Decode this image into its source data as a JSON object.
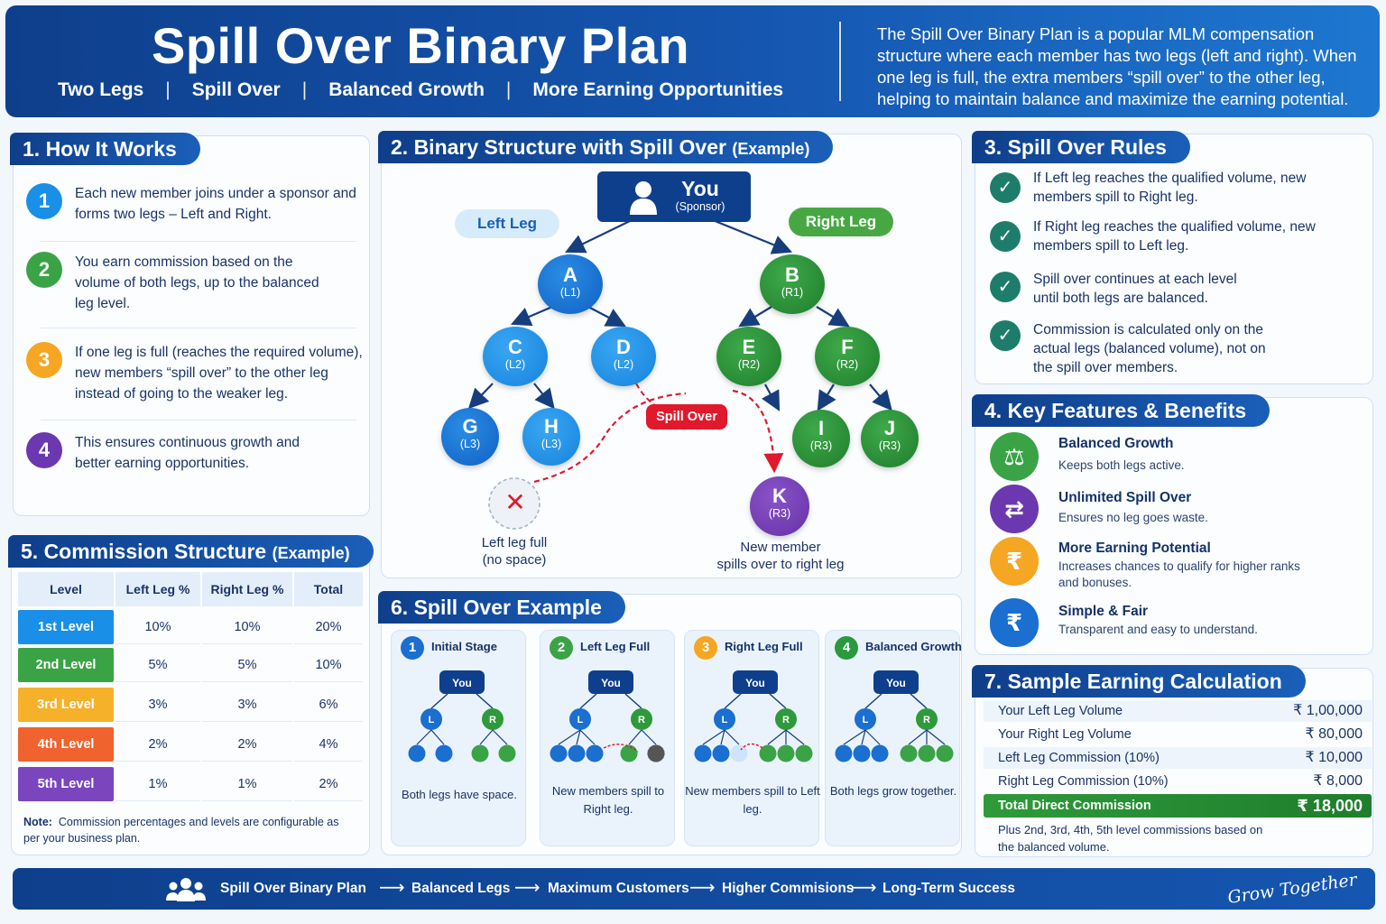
{
  "header": {
    "title": "Spill Over Binary Plan",
    "tags": [
      "Two Legs",
      "Spill Over",
      "Balanced Growth",
      "More Earning Opportunities"
    ],
    "separator": "|",
    "description": "The Spill Over Binary Plan is a popular MLM compensation structure where each member has two legs (left and right). When one leg is full, the extra members “spill over” to the other leg, helping to maintain balance and maximize the earning potential."
  },
  "how_it_works": {
    "title": "1.  How It Works",
    "steps": [
      {
        "num": "1",
        "text": "Each new member joins under a sponsor and forms two legs – Left and Right.",
        "color": "#1a8fe8"
      },
      {
        "num": "2",
        "text": "You earn commission based on the volume of both legs, up to the balanced leg level.",
        "color": "#3aa346"
      },
      {
        "num": "3",
        "text": "If one leg is full (reaches the required volume), new members “spill over” to the other leg instead of going to the weaker leg.",
        "color": "#f5a623"
      },
      {
        "num": "4",
        "text": "This ensures continuous growth and better earning opportunities.",
        "color": "#6b38b0"
      }
    ]
  },
  "binary_structure": {
    "title": "2.  Binary Structure with Spill Over",
    "title_suffix": "(Example)",
    "sponsor": {
      "label": "You",
      "sub": "(Sponsor)"
    },
    "left_leg_label": "Left Leg",
    "right_leg_label": "Right Leg",
    "nodes": {
      "A": {
        "label": "A",
        "sub": "(L1)"
      },
      "B": {
        "label": "B",
        "sub": "(R1)"
      },
      "C": {
        "label": "C",
        "sub": "(L2)"
      },
      "D": {
        "label": "D",
        "sub": "(L2)"
      },
      "E": {
        "label": "E",
        "sub": "(R2)"
      },
      "F": {
        "label": "F",
        "sub": "(R2)"
      },
      "G": {
        "label": "G",
        "sub": "(L3)"
      },
      "H": {
        "label": "H",
        "sub": "(L3)"
      },
      "I": {
        "label": "I",
        "sub": "(R3)"
      },
      "J": {
        "label": "J",
        "sub": "(R3)"
      },
      "K": {
        "label": "K",
        "sub": "(R3)"
      }
    },
    "spill_label": "Spill Over",
    "full_caption_1": "Left leg full",
    "full_caption_2": "(no space)",
    "new_member_caption_1": "New member",
    "new_member_caption_2": "spills over to right leg"
  },
  "rules": {
    "title": "3.  Spill Over Rules",
    "items": [
      "If Left leg reaches the qualified volume, new members spill to Right leg.",
      "If Right leg reaches the qualified volume, new members spill to Left leg.",
      "Spill over continues at each level until both legs are balanced.",
      "Commission is calculated only on the actual legs (balanced volume), not on the spill over members."
    ]
  },
  "features": {
    "title": "4.  Key Features & Benefits",
    "items": [
      {
        "title": "Balanced Growth",
        "desc": "Keeps both legs active.",
        "icon": "scale-icon",
        "glyph": "⚖",
        "color": "#3aa346"
      },
      {
        "title": "Unlimited Spill Over",
        "desc": "Ensures no leg goes waste.",
        "icon": "swap-arrows-icon",
        "glyph": "⇄",
        "color": "#6b38b0"
      },
      {
        "title": "More Earning Potential",
        "desc": "Increases chances to qualify for higher ranks and bonuses.",
        "icon": "money-bag-icon",
        "glyph": "₹",
        "color": "#f5a623"
      },
      {
        "title": "Simple & Fair",
        "desc": "Transparent and easy to understand.",
        "icon": "shield-rupee-icon",
        "glyph": "₹",
        "color": "#1a6fd0"
      }
    ]
  },
  "commission": {
    "title": "5.  Commission Structure",
    "title_suffix": "(Example)",
    "headers": [
      "Level",
      "Left Leg %",
      "Right Leg %",
      "Total"
    ],
    "rows": [
      {
        "level": "1st Level",
        "left": "10%",
        "right": "10%",
        "total": "20%",
        "color": "#1a8fe8"
      },
      {
        "level": "2nd Level",
        "left": "5%",
        "right": "5%",
        "total": "10%",
        "color": "#3aa346"
      },
      {
        "level": "3rd Level",
        "left": "3%",
        "right": "3%",
        "total": "6%",
        "color": "#f5b12a"
      },
      {
        "level": "4th Level",
        "left": "2%",
        "right": "2%",
        "total": "4%",
        "color": "#f0622e"
      },
      {
        "level": "5th Level",
        "left": "1%",
        "right": "1%",
        "total": "2%",
        "color": "#7a45bd"
      }
    ],
    "note_label": "Note:",
    "note_text": "Commission percentages and levels are configurable as per your business plan."
  },
  "example": {
    "title": "6.  Spill Over Example",
    "cards": [
      {
        "num": "1",
        "title": "Initial Stage",
        "desc": "Both legs have space.",
        "color": "#1a6fd0"
      },
      {
        "num": "2",
        "title": "Left Leg Full",
        "desc": "New members spill to Right leg.",
        "color": "#3aa346"
      },
      {
        "num": "3",
        "title": "Right Leg Full",
        "desc": "New members spill to Left leg.",
        "color": "#f5a623"
      },
      {
        "num": "4",
        "title": "Balanced Growth",
        "desc": "Both legs grow together.",
        "color": "#2a9a3e"
      }
    ],
    "you": "You",
    "left": "L",
    "right": "R"
  },
  "calculation": {
    "title": "7.  Sample Earning Calculation",
    "rows": [
      {
        "label": "Your Left Leg Volume",
        "value": "₹ 1,00,000"
      },
      {
        "label": "Your Right Leg Volume",
        "value": "₹ 80,000"
      },
      {
        "label": "Left Leg Commission (10%)",
        "value": "₹ 10,000"
      },
      {
        "label": "Right Leg Commission (10%)",
        "value": "₹ 8,000"
      }
    ],
    "total_label": "Total Direct Commission",
    "total_value": "₹ 18,000",
    "footnote": "Plus 2nd, 3rd, 4th, 5th level commissions based on the balanced volume."
  },
  "footer": {
    "items": [
      "Spill Over Binary Plan",
      "Balanced Legs",
      "Maximum Customers",
      "Higher Commisions",
      "Long-Term Success"
    ],
    "arrow": "⟶",
    "slogan": "Grow Together"
  }
}
